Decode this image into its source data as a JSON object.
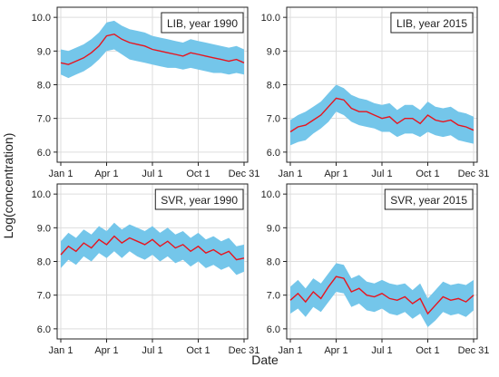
{
  "figure": {
    "ylabel": "Log(concentration)",
    "xlabel": "Date"
  },
  "colors": {
    "band": "#74C6EA",
    "line": "#E8141E",
    "grid": "#DDDDDD",
    "frame": "#222222",
    "text": "#222222"
  },
  "chart_data": [
    {
      "type": "area",
      "title": "LIB, year 1990",
      "x_ticks": [
        "Jan 1",
        "Apr 1",
        "Jul 1",
        "Oct 1",
        "Dec 31"
      ],
      "y_ticks": [
        "6.0",
        "7.0",
        "8.0",
        "9.0",
        "10.0"
      ],
      "ylim": [
        5.7,
        10.3
      ],
      "grid": true,
      "legend": "top-right",
      "x": [
        "Jan 1",
        "Jan 15",
        "Feb 1",
        "Feb 15",
        "Mar 1",
        "Mar 15",
        "Apr 1",
        "Apr 15",
        "May 1",
        "May 15",
        "Jun 1",
        "Jun 15",
        "Jul 1",
        "Jul 15",
        "Aug 1",
        "Aug 15",
        "Sep 1",
        "Sep 15",
        "Oct 1",
        "Oct 15",
        "Nov 1",
        "Nov 15",
        "Dec 1",
        "Dec 15",
        "Dec 31"
      ],
      "series": [
        {
          "role": "estimate",
          "values": [
            8.65,
            8.6,
            8.7,
            8.8,
            8.95,
            9.15,
            9.45,
            9.5,
            9.35,
            9.25,
            9.2,
            9.15,
            9.05,
            9.0,
            8.95,
            8.9,
            8.85,
            8.95,
            8.9,
            8.85,
            8.8,
            8.75,
            8.7,
            8.75,
            8.65
          ]
        },
        {
          "role": "lower",
          "values": [
            8.3,
            8.2,
            8.3,
            8.4,
            8.55,
            8.75,
            9.0,
            9.05,
            8.9,
            8.75,
            8.7,
            8.65,
            8.6,
            8.55,
            8.5,
            8.5,
            8.45,
            8.5,
            8.45,
            8.4,
            8.35,
            8.35,
            8.3,
            8.35,
            8.3
          ]
        },
        {
          "role": "upper",
          "values": [
            9.05,
            9.0,
            9.1,
            9.2,
            9.35,
            9.55,
            9.85,
            9.9,
            9.75,
            9.65,
            9.6,
            9.55,
            9.45,
            9.4,
            9.35,
            9.3,
            9.25,
            9.35,
            9.3,
            9.25,
            9.2,
            9.15,
            9.1,
            9.15,
            9.05
          ]
        }
      ]
    },
    {
      "type": "area",
      "title": "LIB, year 2015",
      "x_ticks": [
        "Jan 1",
        "Apr 1",
        "Jul 1",
        "Oct 1",
        "Dec 31"
      ],
      "y_ticks": [
        "6.0",
        "7.0",
        "8.0",
        "9.0",
        "10.0"
      ],
      "ylim": [
        5.7,
        10.3
      ],
      "grid": true,
      "legend": "top-right",
      "x": [
        "Jan 1",
        "Jan 15",
        "Feb 1",
        "Feb 15",
        "Mar 1",
        "Mar 15",
        "Apr 1",
        "Apr 15",
        "May 1",
        "May 15",
        "Jun 1",
        "Jun 15",
        "Jul 1",
        "Jul 15",
        "Aug 1",
        "Aug 15",
        "Sep 1",
        "Sep 15",
        "Oct 1",
        "Oct 15",
        "Nov 1",
        "Nov 15",
        "Dec 1",
        "Dec 15",
        "Dec 31"
      ],
      "series": [
        {
          "role": "estimate",
          "values": [
            6.6,
            6.75,
            6.8,
            6.95,
            7.1,
            7.35,
            7.6,
            7.55,
            7.3,
            7.2,
            7.2,
            7.1,
            7.0,
            7.05,
            6.85,
            7.0,
            7.0,
            6.85,
            7.1,
            6.95,
            6.9,
            6.95,
            6.8,
            6.75,
            6.65
          ]
        },
        {
          "role": "lower",
          "values": [
            6.2,
            6.3,
            6.35,
            6.55,
            6.7,
            6.9,
            7.2,
            7.1,
            6.9,
            6.8,
            6.75,
            6.7,
            6.6,
            6.6,
            6.45,
            6.55,
            6.55,
            6.45,
            6.6,
            6.5,
            6.45,
            6.5,
            6.35,
            6.3,
            6.25
          ]
        },
        {
          "role": "upper",
          "values": [
            6.95,
            7.1,
            7.2,
            7.35,
            7.5,
            7.75,
            8.0,
            7.9,
            7.7,
            7.6,
            7.55,
            7.45,
            7.4,
            7.45,
            7.25,
            7.4,
            7.4,
            7.25,
            7.5,
            7.35,
            7.3,
            7.35,
            7.2,
            7.15,
            7.05
          ]
        }
      ]
    },
    {
      "type": "area",
      "title": "SVR, year 1990",
      "x_ticks": [
        "Jan 1",
        "Apr 1",
        "Jul 1",
        "Oct 1",
        "Dec 31"
      ],
      "y_ticks": [
        "6.0",
        "7.0",
        "8.0",
        "9.0",
        "10.0"
      ],
      "ylim": [
        5.7,
        10.3
      ],
      "grid": true,
      "legend": "top-right",
      "x": [
        "Jan 1",
        "Jan 15",
        "Feb 1",
        "Feb 15",
        "Mar 1",
        "Mar 15",
        "Apr 1",
        "Apr 15",
        "May 1",
        "May 15",
        "Jun 1",
        "Jun 15",
        "Jul 1",
        "Jul 15",
        "Aug 1",
        "Aug 15",
        "Sep 1",
        "Sep 15",
        "Oct 1",
        "Oct 15",
        "Nov 1",
        "Nov 15",
        "Dec 1",
        "Dec 15",
        "Dec 31"
      ],
      "series": [
        {
          "role": "estimate",
          "values": [
            8.2,
            8.45,
            8.3,
            8.55,
            8.4,
            8.65,
            8.5,
            8.75,
            8.55,
            8.7,
            8.6,
            8.5,
            8.65,
            8.45,
            8.6,
            8.4,
            8.5,
            8.3,
            8.45,
            8.25,
            8.35,
            8.2,
            8.3,
            8.05,
            8.1
          ]
        },
        {
          "role": "lower",
          "values": [
            7.8,
            8.05,
            7.9,
            8.15,
            8.0,
            8.25,
            8.1,
            8.3,
            8.1,
            8.3,
            8.15,
            8.05,
            8.2,
            8.0,
            8.15,
            7.95,
            8.05,
            7.85,
            8.0,
            7.8,
            7.9,
            7.75,
            7.85,
            7.6,
            7.7
          ]
        },
        {
          "role": "upper",
          "values": [
            8.6,
            8.85,
            8.7,
            8.95,
            8.8,
            9.05,
            8.9,
            9.15,
            8.95,
            9.1,
            9.0,
            8.9,
            9.05,
            8.85,
            9.0,
            8.8,
            8.9,
            8.7,
            8.85,
            8.65,
            8.75,
            8.6,
            8.7,
            8.45,
            8.5
          ]
        }
      ]
    },
    {
      "type": "area",
      "title": "SVR, year 2015",
      "x_ticks": [
        "Jan 1",
        "Apr 1",
        "Jul 1",
        "Oct 1",
        "Dec 31"
      ],
      "y_ticks": [
        "6.0",
        "7.0",
        "8.0",
        "9.0",
        "10.0"
      ],
      "ylim": [
        5.7,
        10.3
      ],
      "grid": true,
      "legend": "top-right",
      "x": [
        "Jan 1",
        "Jan 15",
        "Feb 1",
        "Feb 15",
        "Mar 1",
        "Mar 15",
        "Apr 1",
        "Apr 15",
        "May 1",
        "May 15",
        "Jun 1",
        "Jun 15",
        "Jul 1",
        "Jul 15",
        "Aug 1",
        "Aug 15",
        "Sep 1",
        "Sep 15",
        "Oct 1",
        "Oct 15",
        "Nov 1",
        "Nov 15",
        "Dec 1",
        "Dec 15",
        "Dec 31"
      ],
      "series": [
        {
          "role": "estimate",
          "values": [
            6.85,
            7.05,
            6.8,
            7.1,
            6.9,
            7.25,
            7.55,
            7.5,
            7.1,
            7.2,
            7.0,
            6.95,
            7.05,
            6.9,
            6.85,
            6.95,
            6.75,
            6.9,
            6.45,
            6.7,
            6.95,
            6.85,
            6.9,
            6.8,
            7.0
          ]
        },
        {
          "role": "lower",
          "values": [
            6.45,
            6.6,
            6.35,
            6.65,
            6.5,
            6.8,
            7.1,
            7.05,
            6.65,
            6.75,
            6.55,
            6.5,
            6.6,
            6.45,
            6.4,
            6.5,
            6.3,
            6.45,
            6.05,
            6.25,
            6.5,
            6.4,
            6.45,
            6.35,
            6.55
          ]
        },
        {
          "role": "upper",
          "values": [
            7.25,
            7.45,
            7.2,
            7.5,
            7.35,
            7.65,
            7.95,
            7.9,
            7.5,
            7.6,
            7.4,
            7.35,
            7.45,
            7.35,
            7.3,
            7.35,
            7.15,
            7.35,
            6.9,
            7.15,
            7.4,
            7.3,
            7.35,
            7.3,
            7.45
          ]
        }
      ]
    }
  ]
}
